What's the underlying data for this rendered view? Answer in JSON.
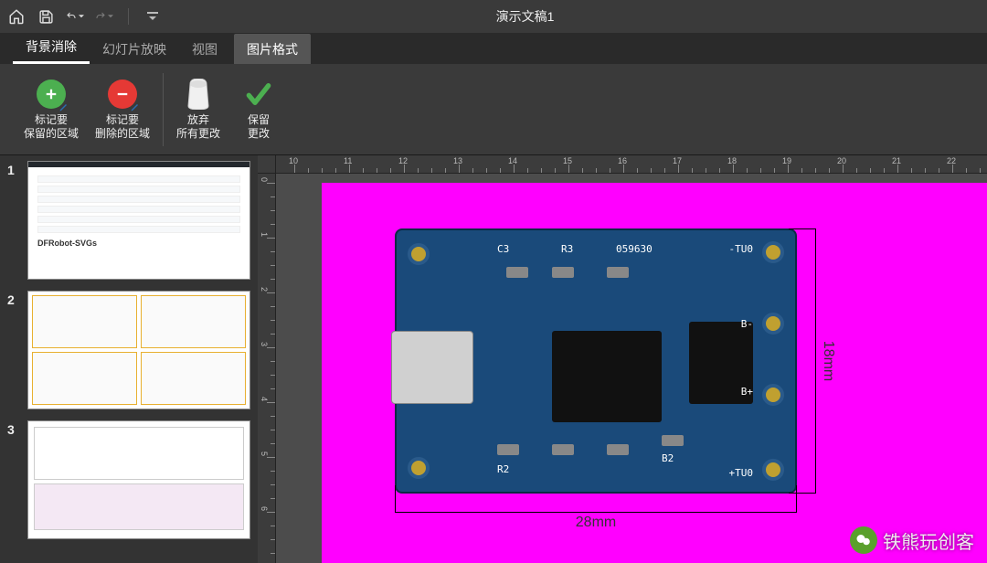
{
  "titlebar": {
    "title": "演示文稿1"
  },
  "tabs": {
    "items": [
      {
        "label": "背景消除",
        "active": true
      },
      {
        "label": "幻灯片放映"
      },
      {
        "label": "视图"
      },
      {
        "label": "图片格式",
        "contextual": true
      }
    ]
  },
  "ribbon": {
    "mark_keep": "标记要\n保留的区域",
    "mark_remove": "标记要\n删除的区域",
    "discard": "放弃\n所有更改",
    "keep": "保留\n更改"
  },
  "thumbs": {
    "items": [
      {
        "num": "1",
        "caption": "DFRobot-SVGs"
      },
      {
        "num": "2"
      },
      {
        "num": "3"
      }
    ]
  },
  "canvas": {
    "dim_h_label": "28mm",
    "dim_v_label": "18mm",
    "ruler_h": [
      "10",
      "11",
      "12",
      "13",
      "14",
      "15",
      "16",
      "17",
      "18",
      "19",
      "20",
      "21",
      "22"
    ],
    "ruler_v": [
      "0",
      "1",
      "2",
      "3",
      "4",
      "5",
      "6"
    ],
    "pcb_silk": {
      "c3": "C3",
      "r3": "R3",
      "a29630": "059630",
      "out_minus_top": "-TU0",
      "r2": "R2",
      "b_plus": "B+",
      "b_minus": "B-",
      "out_plus_bot": "+TU0",
      "b2": "B2"
    }
  },
  "watermark": {
    "text": "铁熊玩创客"
  },
  "colors": {
    "magenta": "#ff00ff",
    "pcb": "#1a4a7a"
  }
}
